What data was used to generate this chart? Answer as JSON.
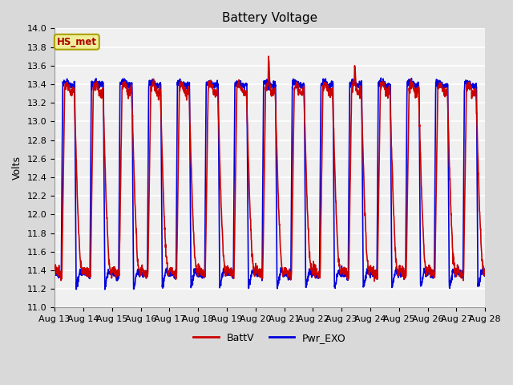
{
  "title": "Battery Voltage",
  "ylabel": "Volts",
  "xlabel": "",
  "ylim": [
    11.0,
    14.0
  ],
  "yticks": [
    11.0,
    11.2,
    11.4,
    11.6,
    11.8,
    12.0,
    12.2,
    12.4,
    12.6,
    12.8,
    13.0,
    13.2,
    13.4,
    13.6,
    13.8,
    14.0
  ],
  "xtick_labels": [
    "Aug 13",
    "Aug 14",
    "Aug 15",
    "Aug 16",
    "Aug 17",
    "Aug 18",
    "Aug 19",
    "Aug 20",
    "Aug 21",
    "Aug 22",
    "Aug 23",
    "Aug 24",
    "Aug 25",
    "Aug 26",
    "Aug 27",
    "Aug 28"
  ],
  "line1_color": "#cc0000",
  "line2_color": "#0000dd",
  "line1_label": "BattV",
  "line2_label": "Pwr_EXO",
  "line_width": 1.2,
  "bg_color": "#d9d9d9",
  "plot_bg_color": "#f0f0f0",
  "grid_color": "#ffffff",
  "annotation_text": "HS_met",
  "annotation_color": "#aa0000",
  "annotation_bg": "#eeee99",
  "annotation_border": "#aaa000",
  "title_fontsize": 11,
  "axis_fontsize": 9,
  "tick_fontsize": 8
}
